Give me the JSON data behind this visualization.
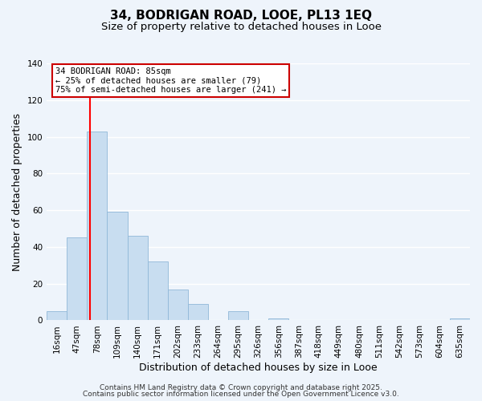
{
  "title_line1": "34, BODRIGAN ROAD, LOOE, PL13 1EQ",
  "title_line2": "Size of property relative to detached houses in Looe",
  "xlabel": "Distribution of detached houses by size in Looe",
  "ylabel": "Number of detached properties",
  "bar_color": "#c8ddf0",
  "bar_edge_color": "#90b8d8",
  "bin_labels": [
    "16sqm",
    "47sqm",
    "78sqm",
    "109sqm",
    "140sqm",
    "171sqm",
    "202sqm",
    "233sqm",
    "264sqm",
    "295sqm",
    "326sqm",
    "356sqm",
    "387sqm",
    "418sqm",
    "449sqm",
    "480sqm",
    "511sqm",
    "542sqm",
    "573sqm",
    "604sqm",
    "635sqm"
  ],
  "bar_heights": [
    5,
    45,
    103,
    59,
    46,
    32,
    17,
    9,
    0,
    5,
    0,
    1,
    0,
    0,
    0,
    0,
    0,
    0,
    0,
    0,
    1
  ],
  "ylim": [
    0,
    140
  ],
  "yticks": [
    0,
    20,
    40,
    60,
    80,
    100,
    120,
    140
  ],
  "red_line_bin": 2,
  "annotation_title": "34 BODRIGAN ROAD: 85sqm",
  "annotation_line1": "← 25% of detached houses are smaller (79)",
  "annotation_line2": "75% of semi-detached houses are larger (241) →",
  "annotation_box_color": "white",
  "annotation_box_edge": "#cc0000",
  "footer_line1": "Contains HM Land Registry data © Crown copyright and database right 2025.",
  "footer_line2": "Contains public sector information licensed under the Open Government Licence v3.0.",
  "background_color": "#eef4fb",
  "grid_color": "white",
  "title_fontsize": 11,
  "subtitle_fontsize": 9.5,
  "axis_label_fontsize": 9,
  "tick_fontsize": 7.5,
  "footer_fontsize": 6.5
}
